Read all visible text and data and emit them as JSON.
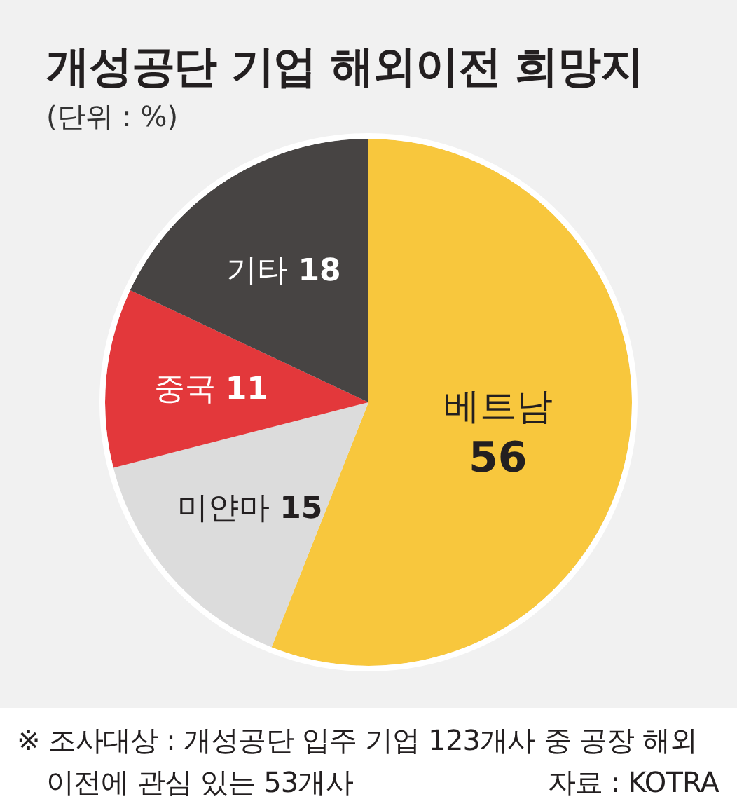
{
  "chart_data": {
    "type": "pie",
    "title": "개성공단 기업 해외이전 희망지",
    "subtitle": "(단위 : %)",
    "categories": [
      "베트남",
      "미얀마",
      "중국",
      "기타"
    ],
    "values": [
      56,
      15,
      11,
      18
    ],
    "colors": [
      "#f8c73d",
      "#dcdcdc",
      "#e3383b",
      "#474443"
    ],
    "data_labels": true,
    "annotations": [
      "※ 조사대상 : 개성공단 입주 기업 123개사 중 공장 해외 이전에 관심 있는 53개사",
      "자료 : KOTRA"
    ]
  }
}
